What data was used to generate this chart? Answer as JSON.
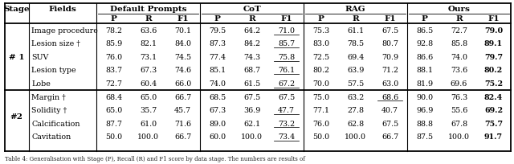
{
  "caption": "Table 4: Generalisation with Stage (P), Recall (R) and F1 score by data stage. The numbers are results of",
  "group_names": [
    "Default Prompts",
    "CoT",
    "RAG",
    "Ours"
  ],
  "prf_labels": [
    "P",
    "R",
    "F1"
  ],
  "stage1_label": "# 1",
  "stage2_label": "#2",
  "rows": [
    {
      "stage": "# 1",
      "field": "Image procedure",
      "dp": [
        78.2,
        63.6,
        70.1
      ],
      "cot": [
        79.5,
        64.2,
        71.0
      ],
      "rag": [
        75.3,
        61.1,
        67.5
      ],
      "ours": [
        86.5,
        72.7,
        79.0
      ],
      "cot_ul": [
        2
      ],
      "rag_ul": [],
      "ours_bold": [
        2
      ]
    },
    {
      "stage": "# 1",
      "field": "Lesion size †",
      "dp": [
        85.9,
        82.1,
        84.0
      ],
      "cot": [
        87.3,
        84.2,
        85.7
      ],
      "rag": [
        83.0,
        78.5,
        80.7
      ],
      "ours": [
        92.8,
        85.8,
        89.1
      ],
      "cot_ul": [
        2
      ],
      "rag_ul": [],
      "ours_bold": [
        2
      ]
    },
    {
      "stage": "# 1",
      "field": "SUV",
      "dp": [
        76.0,
        73.1,
        74.5
      ],
      "cot": [
        77.4,
        74.3,
        75.8
      ],
      "rag": [
        72.5,
        69.4,
        70.9
      ],
      "ours": [
        86.6,
        74.0,
        79.7
      ],
      "cot_ul": [
        2
      ],
      "rag_ul": [],
      "ours_bold": [
        2
      ]
    },
    {
      "stage": "# 1",
      "field": "Lesion type",
      "dp": [
        83.7,
        67.3,
        74.6
      ],
      "cot": [
        85.1,
        68.7,
        76.1
      ],
      "rag": [
        80.2,
        63.9,
        71.2
      ],
      "ours": [
        88.1,
        73.6,
        80.2
      ],
      "cot_ul": [
        2
      ],
      "rag_ul": [],
      "ours_bold": [
        2
      ]
    },
    {
      "stage": "# 1",
      "field": "Lobe",
      "dp": [
        72.7,
        60.4,
        66.0
      ],
      "cot": [
        74.0,
        61.5,
        67.2
      ],
      "rag": [
        70.0,
        57.5,
        63.0
      ],
      "ours": [
        81.9,
        69.6,
        75.2
      ],
      "cot_ul": [
        2
      ],
      "rag_ul": [],
      "ours_bold": [
        2
      ]
    },
    {
      "stage": "#2",
      "field": "Margin †",
      "dp": [
        68.4,
        65.0,
        66.7
      ],
      "cot": [
        68.5,
        67.5,
        67.5
      ],
      "rag": [
        75.0,
        63.2,
        68.6
      ],
      "ours": [
        90.0,
        76.3,
        82.4
      ],
      "cot_ul": [],
      "rag_ul": [
        2
      ],
      "ours_bold": [
        2
      ]
    },
    {
      "stage": "#2",
      "field": "Solidity †",
      "dp": [
        65.0,
        35.7,
        45.7
      ],
      "cot": [
        67.3,
        36.9,
        47.7
      ],
      "rag": [
        77.1,
        27.8,
        40.7
      ],
      "ours": [
        96.9,
        55.6,
        69.2
      ],
      "cot_ul": [
        2
      ],
      "rag_ul": [],
      "ours_bold": [
        2
      ]
    },
    {
      "stage": "#2",
      "field": "Calcification",
      "dp": [
        87.7,
        61.0,
        71.6
      ],
      "cot": [
        89.0,
        62.1,
        73.2
      ],
      "rag": [
        76.0,
        62.8,
        67.5
      ],
      "ours": [
        88.8,
        67.8,
        75.7
      ],
      "cot_ul": [
        2
      ],
      "rag_ul": [],
      "ours_bold": [
        2
      ]
    },
    {
      "stage": "#2",
      "field": "Cavitation",
      "dp": [
        50.0,
        100.0,
        66.7
      ],
      "cot": [
        60.0,
        100.0,
        73.4
      ],
      "rag": [
        50.0,
        100.0,
        66.7
      ],
      "ours": [
        87.5,
        100.0,
        91.7
      ],
      "cot_ul": [
        2
      ],
      "rag_ul": [],
      "ours_bold": [
        2
      ]
    }
  ]
}
